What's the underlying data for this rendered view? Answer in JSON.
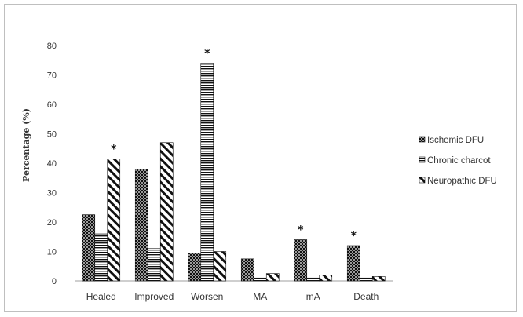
{
  "chart_data": {
    "type": "bar",
    "title": "",
    "xlabel": "",
    "ylabel": "Percentage (%)",
    "ylim": [
      0,
      80
    ],
    "yticks": [
      0,
      10,
      20,
      30,
      40,
      50,
      60,
      70,
      80
    ],
    "grid": false,
    "legend_position": "right",
    "categories": [
      "Healed",
      "Improved",
      "Worsen",
      "MA",
      "mA",
      "Death"
    ],
    "series": [
      {
        "name": "Ischemic DFU",
        "pattern": "dots",
        "values": [
          22.5,
          38,
          9.5,
          7.5,
          14,
          12
        ]
      },
      {
        "name": "Chronic charcot",
        "pattern": "horizontal-stripes",
        "values": [
          16,
          11,
          74,
          1,
          1,
          1
        ]
      },
      {
        "name": "Neuropathic DFU",
        "pattern": "diagonal-stripes",
        "values": [
          41.5,
          47,
          10,
          2.5,
          2,
          1.5
        ]
      }
    ],
    "annotations": [
      {
        "category": "Healed",
        "series": "Neuropathic DFU",
        "text": "*"
      },
      {
        "category": "Worsen",
        "series": "Chronic charcot",
        "text": "*"
      },
      {
        "category": "mA",
        "series": "Ischemic DFU",
        "text": "*"
      },
      {
        "category": "Death",
        "series": "Ischemic DFU",
        "text": "*"
      }
    ],
    "colors": {
      "ink": "#111111",
      "axis": "#bfbfbf",
      "text": "#333333",
      "background": "#ffffff"
    }
  }
}
